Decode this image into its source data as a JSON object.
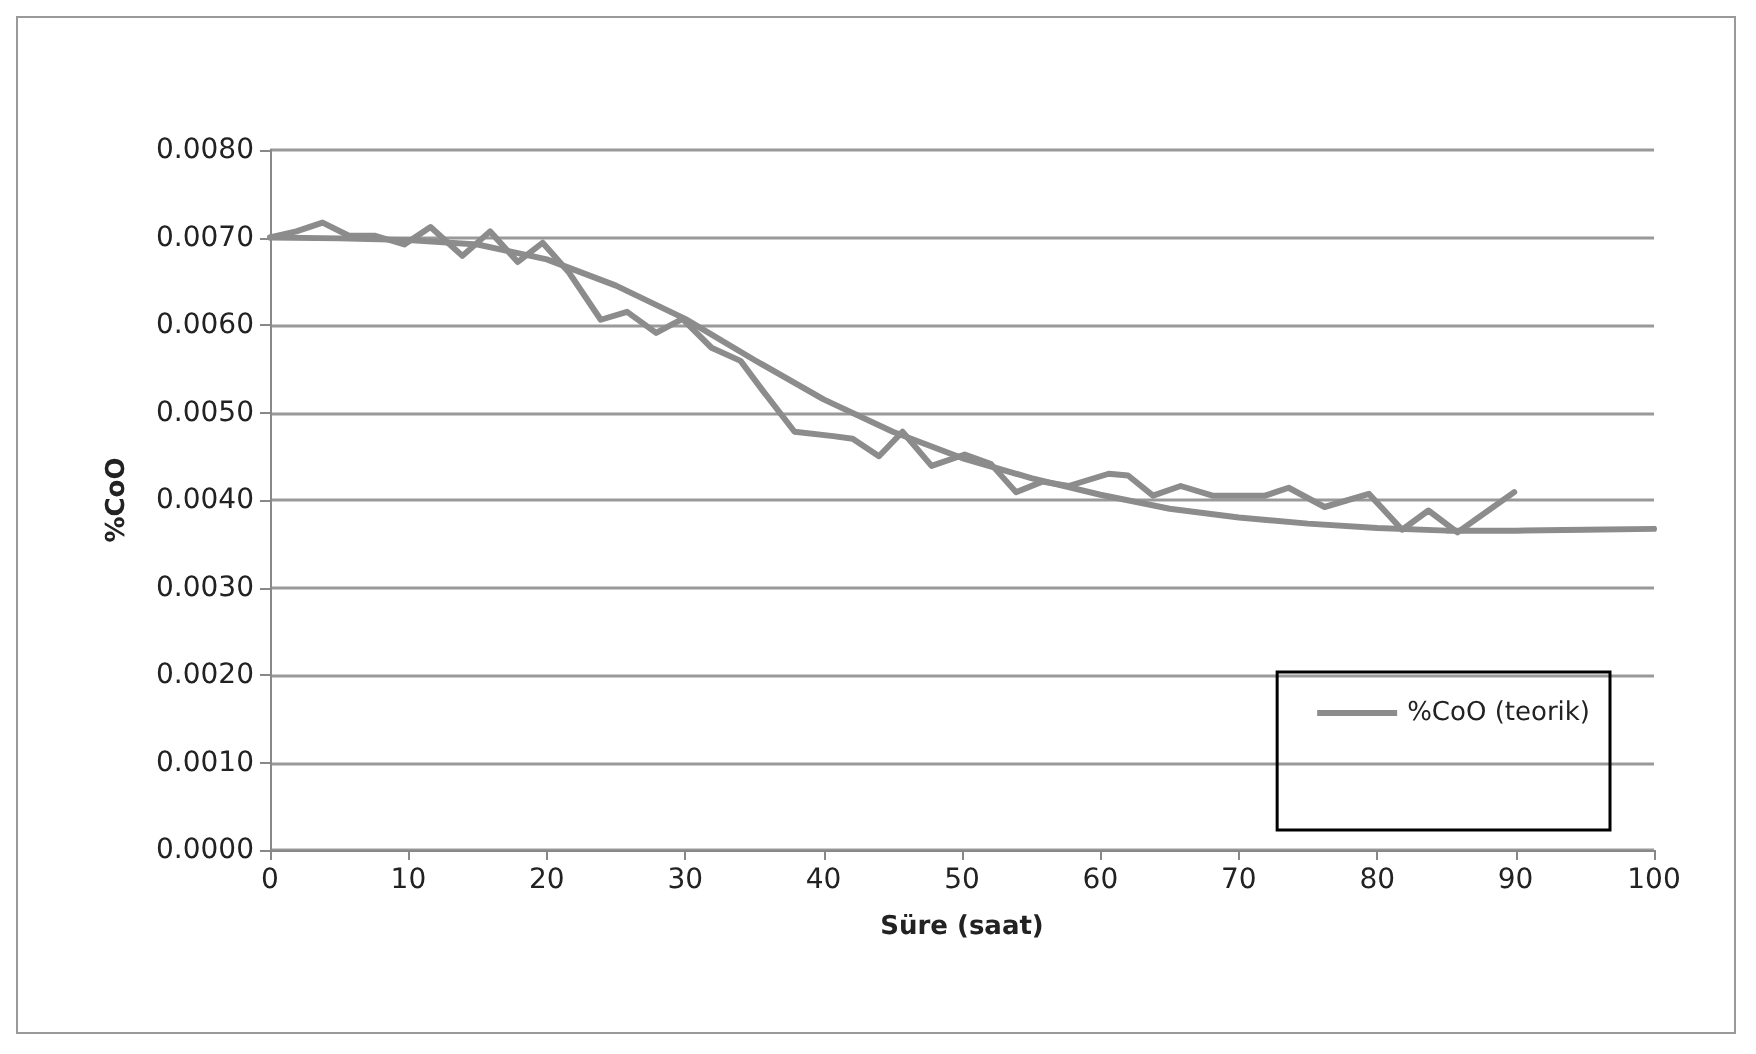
{
  "chart_data": {
    "type": "line",
    "xlabel": "Süre (saat)",
    "ylabel": "%CoO",
    "xlim": [
      0,
      100
    ],
    "xticks": [
      0,
      10,
      20,
      30,
      40,
      50,
      60,
      70,
      80,
      90,
      100
    ],
    "ylim": [
      0,
      0.008
    ],
    "yticks": [
      {
        "value": 0,
        "label": "0.0000"
      },
      {
        "value": 0.001,
        "label": "0.0010"
      },
      {
        "value": 0.002,
        "label": "0.0020"
      },
      {
        "value": 0.003,
        "label": "0.0030"
      },
      {
        "value": 0.004,
        "label": "0.0040"
      },
      {
        "value": 0.005,
        "label": "0.0050"
      },
      {
        "value": 0.006,
        "label": "0.0060"
      },
      {
        "value": 0.007,
        "label": "0.0070"
      },
      {
        "value": 0.008,
        "label": "0.0080"
      }
    ],
    "grid": "y",
    "legend": "right",
    "marker": "none",
    "line_style": "solid",
    "series": [
      {
        "color": "#8c8c8c",
        "x": [
          0,
          1.9,
          3.8,
          5.7,
          7.6,
          9.7,
          11.6,
          13.9,
          15.9,
          17.9,
          19.7,
          21.6,
          23.9,
          25.8,
          27.9,
          29.8,
          31.9,
          34,
          35.7,
          37.9,
          40.7,
          42.1,
          44,
          45.7,
          47.8,
          50.2,
          52.1,
          53.9,
          55.8,
          57.7,
          60.6,
          62,
          63.8,
          65.8,
          68.1,
          71.9,
          73.6,
          76.2,
          79.4,
          81.8,
          83.7,
          85.8,
          89.9
        ],
        "values": [
          0.007,
          0.00707,
          0.00717,
          0.00702,
          0.00702,
          0.00692,
          0.00712,
          0.00679,
          0.00707,
          0.00672,
          0.00694,
          0.0066,
          0.00606,
          0.00615,
          0.00591,
          0.00607,
          0.00574,
          0.00559,
          0.00523,
          0.00478,
          0.00473,
          0.0047,
          0.0045,
          0.00478,
          0.00439,
          0.00452,
          0.00441,
          0.00409,
          0.00421,
          0.00416,
          0.0043,
          0.00428,
          0.00405,
          0.00416,
          0.00405,
          0.00405,
          0.00414,
          0.00392,
          0.00407,
          0.00366,
          0.00388,
          0.00363,
          0.00409
        ]
      },
      {
        "name": "%CoO (teorik)",
        "color": "#8c8c8c",
        "x": [
          0,
          5,
          10,
          15,
          20,
          25,
          30,
          35,
          40,
          45,
          50,
          55,
          60,
          65,
          70,
          75,
          80,
          85,
          90,
          95,
          100
        ],
        "values": [
          0.007,
          0.00699,
          0.00697,
          0.00692,
          0.00675,
          0.00645,
          0.00607,
          0.0056,
          0.00515,
          0.00478,
          0.00448,
          0.00425,
          0.00406,
          0.0039,
          0.0038,
          0.00373,
          0.00368,
          0.00365,
          0.00365,
          0.00366,
          0.00367
        ]
      }
    ]
  }
}
